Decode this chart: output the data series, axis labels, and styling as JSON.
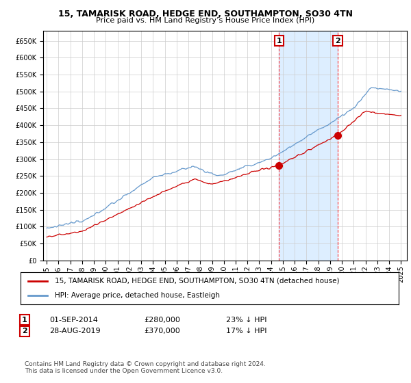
{
  "title": "15, TAMARISK ROAD, HEDGE END, SOUTHAMPTON, SO30 4TN",
  "subtitle": "Price paid vs. HM Land Registry’s House Price Index (HPI)",
  "ylabel_ticks": [
    0,
    50000,
    100000,
    150000,
    200000,
    250000,
    300000,
    350000,
    400000,
    450000,
    500000,
    550000,
    600000,
    650000
  ],
  "xlim_left": 1994.7,
  "xlim_right": 2025.5,
  "ylim": [
    0,
    680000
  ],
  "legend_line1": "15, TAMARISK ROAD, HEDGE END, SOUTHAMPTON, SO30 4TN (detached house)",
  "legend_line2": "HPI: Average price, detached house, Eastleigh",
  "line1_color": "#cc0000",
  "line2_color": "#6699cc",
  "shade_color": "#ddeeff",
  "point1_x": 2014.67,
  "point1_y": 280000,
  "point1_label": "1",
  "point1_date": "01-SEP-2014",
  "point1_price": "£280,000",
  "point1_hpi": "23% ↓ HPI",
  "point2_x": 2019.65,
  "point2_y": 370000,
  "point2_label": "2",
  "point2_date": "28-AUG-2019",
  "point2_price": "£370,000",
  "point2_hpi": "17% ↓ HPI",
  "footnote": "Contains HM Land Registry data © Crown copyright and database right 2024.\nThis data is licensed under the Open Government Licence v3.0.",
  "background_color": "#ffffff",
  "plot_bg_color": "#ffffff",
  "grid_color": "#cccccc"
}
